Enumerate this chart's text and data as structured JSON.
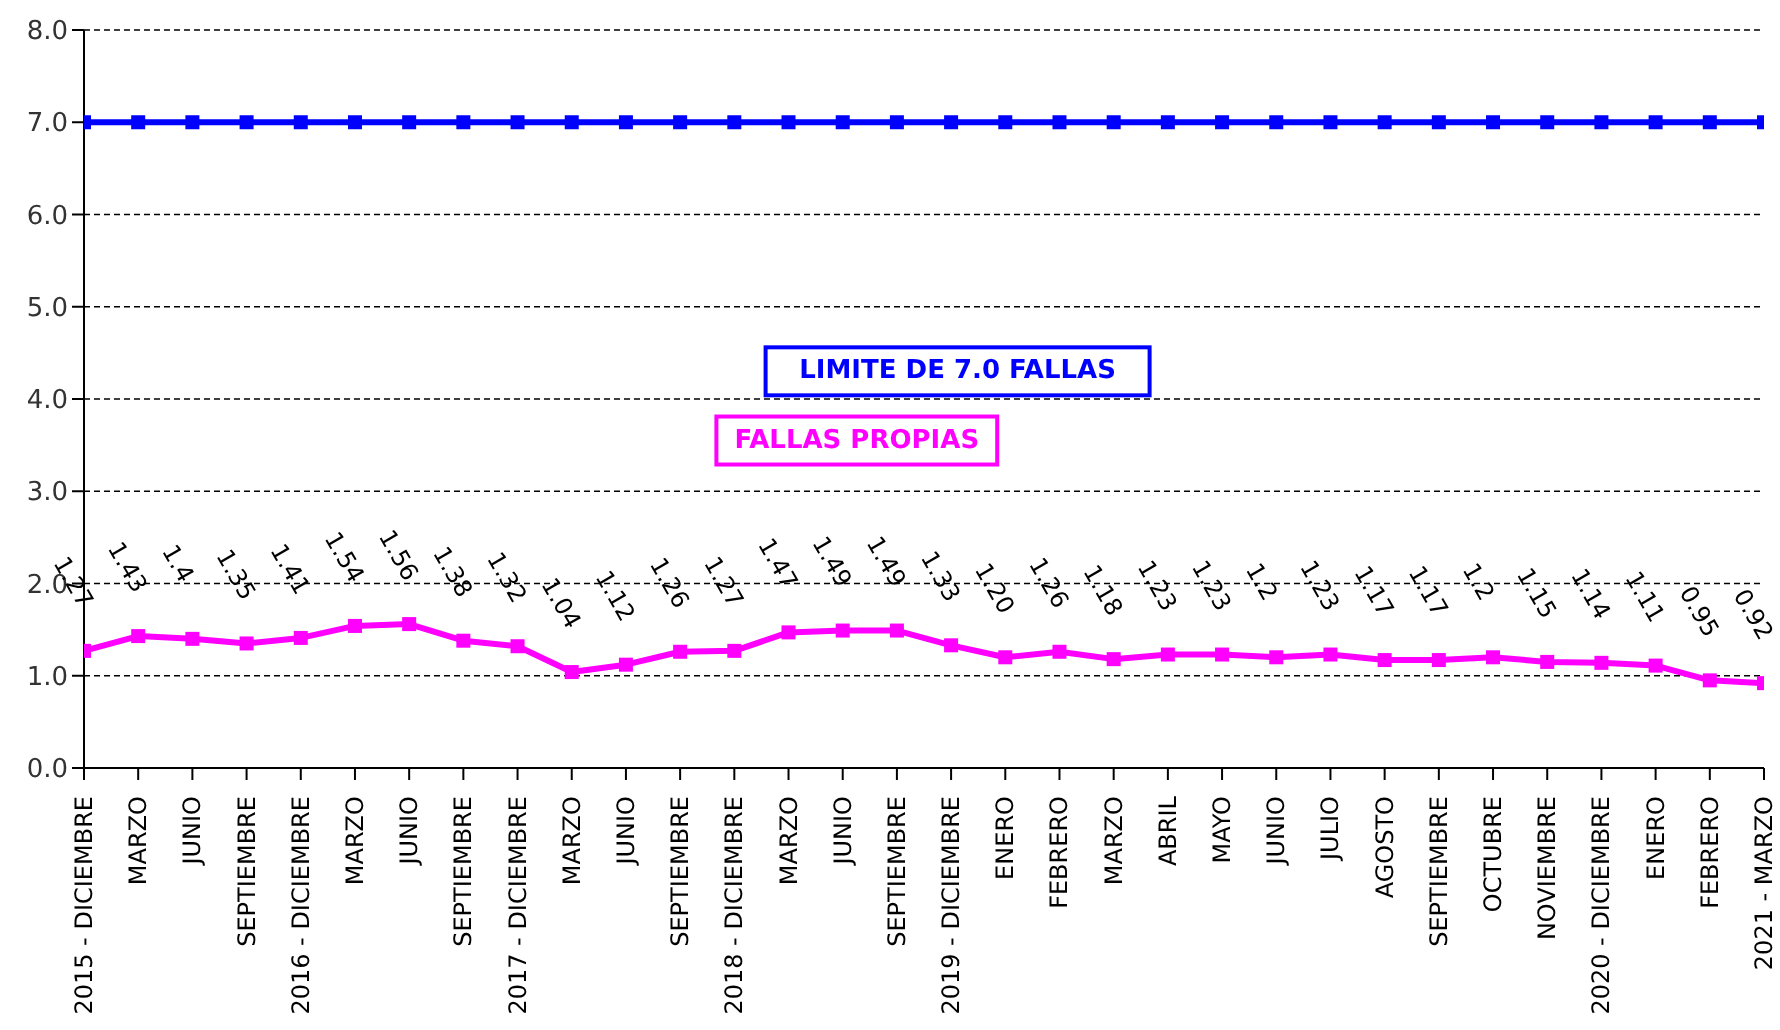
{
  "chart_data": {
    "type": "line",
    "categories": [
      "2015 - DICIEMBRE",
      "MARZO",
      "JUNIO",
      "SEPTIEMBRE",
      "2016 - DICIEMBRE",
      "MARZO",
      "JUNIO",
      "SEPTIEMBRE",
      "2017 - DICIEMBRE",
      "MARZO",
      "JUNIO",
      "SEPTIEMBRE",
      "2018 - DICIEMBRE",
      "MARZO",
      "JUNIO",
      "SEPTIEMBRE",
      "2019 - DICIEMBRE",
      "ENERO",
      "FEBRERO",
      "MARZO",
      "ABRIL",
      "MAYO",
      "JUNIO",
      "JULIO",
      "AGOSTO",
      "SEPTIEMBRE",
      "OCTUBRE",
      "NOVIEMBRE",
      "2020 - DICIEMBRE",
      "ENERO",
      "FEBRERO",
      "2021 - MARZO"
    ],
    "series": [
      {
        "name": "LIMITE DE 7.0 FALLAS",
        "color": "#0000ff",
        "values": [
          7,
          7,
          7,
          7,
          7,
          7,
          7,
          7,
          7,
          7,
          7,
          7,
          7,
          7,
          7,
          7,
          7,
          7,
          7,
          7,
          7,
          7,
          7,
          7,
          7,
          7,
          7,
          7,
          7,
          7,
          7,
          7
        ]
      },
      {
        "name": "FALLAS PROPIAS",
        "color": "#ff00ff",
        "values": [
          1.27,
          1.43,
          1.4,
          1.35,
          1.41,
          1.54,
          1.56,
          1.38,
          1.32,
          1.04,
          1.12,
          1.26,
          1.27,
          1.47,
          1.49,
          1.49,
          1.33,
          1.2,
          1.26,
          1.18,
          1.23,
          1.23,
          1.2,
          1.23,
          1.17,
          1.17,
          1.2,
          1.15,
          1.14,
          1.11,
          0.95,
          0.92
        ],
        "value_labels": [
          "1.27",
          "1.43",
          "1.4",
          "1.35",
          "1.41",
          "1.54",
          "1.56",
          "1.38",
          "1.32",
          "1.04",
          "1.12",
          "1.26",
          "1.27",
          "1.47",
          "1.49",
          "1.49",
          "1.33",
          "1.20",
          "1.26",
          "1.18",
          "1.23",
          "1.23",
          "1.2",
          "1.23",
          "1.17",
          "1.17",
          "1.2",
          "1.15",
          "1.14",
          "1.11",
          "0.95",
          "0.92"
        ]
      }
    ],
    "ylim": [
      0,
      8
    ],
    "yticks": [
      {
        "value": 0,
        "label": "0.0"
      },
      {
        "value": 1,
        "label": "1.0"
      },
      {
        "value": 2,
        "label": "2.0"
      },
      {
        "value": 3,
        "label": "3.0"
      },
      {
        "value": 4,
        "label": "4.0"
      },
      {
        "value": 5,
        "label": "5.0"
      },
      {
        "value": 6,
        "label": "6.0"
      },
      {
        "value": 7,
        "label": "7.0"
      },
      {
        "value": 8,
        "label": "8.0"
      }
    ],
    "grid": "y",
    "legend": false,
    "marker": "square",
    "line_style": "solid"
  }
}
